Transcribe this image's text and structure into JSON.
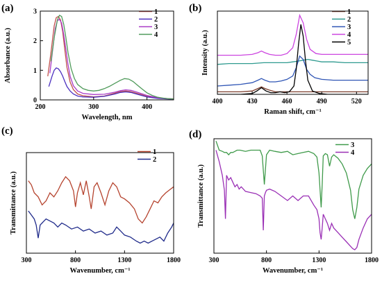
{
  "chart_data": [
    {
      "id": "a",
      "panel_label": "(a)",
      "type": "line",
      "xlabel": "Wavelength, nm",
      "ylabel": "Absorbance (a.u.)",
      "xlim": [
        200,
        450
      ],
      "ylim": [
        0,
        3
      ],
      "xticks": [
        200,
        300,
        400
      ],
      "yticks": [
        0,
        1,
        2,
        3
      ],
      "show_ytick_labels": true,
      "legend_position": "top-right",
      "series": [
        {
          "name": "1",
          "color": "#c0504d",
          "x": [
            214,
            220,
            226,
            230,
            234,
            238,
            242,
            246,
            250,
            256,
            262,
            270,
            280,
            300,
            320,
            340,
            350,
            360,
            370,
            380,
            400,
            420,
            440,
            450
          ],
          "y": [
            0.8,
            1.6,
            2.5,
            2.78,
            2.82,
            2.7,
            2.3,
            1.7,
            1.1,
            0.6,
            0.35,
            0.2,
            0.14,
            0.1,
            0.13,
            0.23,
            0.28,
            0.3,
            0.28,
            0.23,
            0.12,
            0.06,
            0.04,
            0.03
          ]
        },
        {
          "name": "2",
          "color": "#4b2fbf",
          "x": [
            216,
            222,
            226,
            230,
            234,
            238,
            242,
            246,
            250,
            256,
            262,
            270,
            280,
            300,
            320,
            340,
            350,
            360,
            370,
            380,
            400,
            420,
            440,
            450
          ],
          "y": [
            0.45,
            0.8,
            1.0,
            1.08,
            1.05,
            0.95,
            0.8,
            0.62,
            0.45,
            0.3,
            0.2,
            0.13,
            0.1,
            0.09,
            0.12,
            0.2,
            0.25,
            0.27,
            0.25,
            0.2,
            0.1,
            0.05,
            0.03,
            0.02
          ]
        },
        {
          "name": "3",
          "color": "#a93bc7",
          "x": [
            218,
            224,
            228,
            232,
            236,
            240,
            244,
            248,
            252,
            256,
            262,
            270,
            280,
            300,
            320,
            340,
            350,
            360,
            370,
            380,
            400,
            420,
            440,
            450
          ],
          "y": [
            0.9,
            1.8,
            2.4,
            2.68,
            2.72,
            2.6,
            2.2,
            1.7,
            1.2,
            0.8,
            0.48,
            0.3,
            0.22,
            0.18,
            0.19,
            0.26,
            0.31,
            0.34,
            0.32,
            0.27,
            0.15,
            0.07,
            0.04,
            0.03
          ]
        },
        {
          "name": "4",
          "color": "#4f9a5a",
          "x": [
            220,
            226,
            232,
            236,
            240,
            244,
            248,
            252,
            258,
            264,
            270,
            280,
            290,
            300,
            310,
            320,
            330,
            340,
            350,
            358,
            366,
            374,
            382,
            390,
            400,
            410,
            420,
            430,
            440,
            450
          ],
          "y": [
            1.3,
            2.1,
            2.7,
            2.86,
            2.82,
            2.55,
            2.1,
            1.6,
            1.05,
            0.72,
            0.52,
            0.38,
            0.32,
            0.3,
            0.32,
            0.38,
            0.46,
            0.56,
            0.66,
            0.72,
            0.7,
            0.62,
            0.5,
            0.38,
            0.24,
            0.15,
            0.09,
            0.06,
            0.04,
            0.03
          ]
        }
      ]
    },
    {
      "id": "b",
      "panel_label": "(b)",
      "type": "line",
      "xlabel": "Raman shift, cm⁻¹",
      "ylabel": "Intensity (a.u.)",
      "xlim": [
        400,
        530
      ],
      "ylim": [
        0,
        1
      ],
      "xticks": [
        400,
        430,
        460,
        490,
        520
      ],
      "show_ytick_labels": false,
      "legend_position": "top-right",
      "series": [
        {
          "name": "1",
          "color": "#7b3b2a",
          "x": [
            400,
            410,
            420,
            430,
            435,
            438,
            441,
            445,
            450,
            455,
            460,
            465,
            470,
            480,
            490,
            500,
            510,
            520,
            530
          ],
          "y": [
            0.03,
            0.03,
            0.03,
            0.04,
            0.07,
            0.09,
            0.07,
            0.05,
            0.03,
            0.03,
            0.03,
            0.03,
            0.03,
            0.03,
            0.03,
            0.03,
            0.03,
            0.03,
            0.03
          ]
        },
        {
          "name": "2",
          "color": "#2e9a8f",
          "x": [
            400,
            410,
            420,
            430,
            440,
            450,
            460,
            465,
            470,
            474,
            478,
            482,
            486,
            490,
            500,
            510,
            520,
            530
          ],
          "y": [
            0.36,
            0.37,
            0.37,
            0.37,
            0.38,
            0.38,
            0.38,
            0.39,
            0.4,
            0.41,
            0.42,
            0.41,
            0.4,
            0.39,
            0.39,
            0.38,
            0.38,
            0.38
          ]
        },
        {
          "name": "3",
          "color": "#2f55b5",
          "x": [
            400,
            410,
            420,
            430,
            435,
            438,
            441,
            445,
            450,
            455,
            460,
            465,
            468,
            471,
            474,
            477,
            480,
            484,
            490,
            500,
            510,
            520,
            530
          ],
          "y": [
            0.1,
            0.11,
            0.12,
            0.14,
            0.17,
            0.19,
            0.17,
            0.15,
            0.15,
            0.16,
            0.18,
            0.22,
            0.32,
            0.46,
            0.42,
            0.3,
            0.24,
            0.2,
            0.18,
            0.17,
            0.17,
            0.17,
            0.17
          ]
        },
        {
          "name": "4",
          "color": "#cc44e0",
          "x": [
            400,
            410,
            420,
            430,
            435,
            438,
            441,
            445,
            450,
            455,
            460,
            465,
            468,
            471,
            474,
            477,
            480,
            485,
            490,
            500,
            510,
            520,
            530
          ],
          "y": [
            0.47,
            0.47,
            0.47,
            0.48,
            0.5,
            0.52,
            0.5,
            0.48,
            0.47,
            0.47,
            0.49,
            0.56,
            0.72,
            0.95,
            0.86,
            0.66,
            0.54,
            0.49,
            0.48,
            0.48,
            0.48,
            0.48,
            0.48
          ]
        },
        {
          "name": "5",
          "color": "#000000",
          "x": [
            400,
            420,
            430,
            434,
            438,
            442,
            446,
            450,
            454,
            458,
            462,
            466,
            468,
            470,
            472,
            474,
            476,
            478,
            482,
            488,
            495,
            510,
            530
          ],
          "y": [
            0.0,
            0.0,
            0.01,
            0.04,
            0.08,
            0.04,
            0.02,
            0.02,
            0.03,
            0.02,
            0.03,
            0.1,
            0.3,
            0.6,
            0.84,
            0.7,
            0.4,
            0.17,
            0.04,
            0.01,
            0.0,
            0.0,
            0.0
          ]
        }
      ]
    },
    {
      "id": "c",
      "panel_label": "(c)",
      "type": "line",
      "xlabel": "Wavenumber, cm⁻¹",
      "ylabel": "Transmittance (a.u.)",
      "xlim": [
        300,
        1800
      ],
      "ylim": [
        0,
        1
      ],
      "xticks": [
        300,
        800,
        1300,
        1800
      ],
      "show_ytick_labels": false,
      "legend_position": "top-right",
      "series": [
        {
          "name": "1",
          "color": "#b5432e",
          "x": [
            320,
            350,
            380,
            420,
            460,
            500,
            540,
            580,
            620,
            660,
            700,
            740,
            780,
            800,
            820,
            850,
            880,
            910,
            940,
            960,
            990,
            1020,
            1060,
            1100,
            1140,
            1180,
            1220,
            1260,
            1300,
            1350,
            1400,
            1440,
            1480,
            1520,
            1560,
            1600,
            1640,
            1680,
            1720,
            1760,
            1800
          ],
          "y": [
            0.72,
            0.68,
            0.6,
            0.56,
            0.48,
            0.52,
            0.6,
            0.56,
            0.62,
            0.7,
            0.76,
            0.72,
            0.62,
            0.46,
            0.6,
            0.7,
            0.58,
            0.72,
            0.56,
            0.44,
            0.66,
            0.7,
            0.6,
            0.48,
            0.62,
            0.7,
            0.66,
            0.56,
            0.54,
            0.5,
            0.44,
            0.34,
            0.3,
            0.36,
            0.44,
            0.52,
            0.5,
            0.56,
            0.6,
            0.63,
            0.66
          ]
        },
        {
          "name": "2",
          "color": "#1f2a8a",
          "x": [
            320,
            350,
            380,
            400,
            420,
            440,
            460,
            480,
            500,
            540,
            580,
            620,
            660,
            700,
            760,
            820,
            880,
            940,
            1000,
            1060,
            1120,
            1180,
            1220,
            1260,
            1300,
            1360,
            1420,
            1460,
            1500,
            1540,
            1580,
            1620,
            1660,
            1700,
            1740,
            1780,
            1800
          ],
          "y": [
            0.42,
            0.38,
            0.34,
            0.28,
            0.15,
            0.28,
            0.3,
            0.32,
            0.34,
            0.32,
            0.3,
            0.26,
            0.3,
            0.28,
            0.24,
            0.26,
            0.22,
            0.24,
            0.2,
            0.22,
            0.18,
            0.2,
            0.26,
            0.22,
            0.18,
            0.16,
            0.12,
            0.1,
            0.12,
            0.1,
            0.12,
            0.14,
            0.16,
            0.12,
            0.2,
            0.26,
            0.3
          ]
        }
      ]
    },
    {
      "id": "d",
      "panel_label": "(d)",
      "type": "line",
      "xlabel": "Wavenumber, cm⁻¹",
      "ylabel": "Transmittance (a.u.)",
      "xlim": [
        300,
        1800
      ],
      "ylim": [
        0,
        1
      ],
      "xticks": [
        300,
        800,
        1300,
        1800
      ],
      "show_ytick_labels": false,
      "legend_position": "top-right",
      "series": [
        {
          "name": "3",
          "color": "#3f9a4a",
          "x": [
            320,
            350,
            380,
            400,
            420,
            440,
            460,
            480,
            500,
            520,
            550,
            600,
            650,
            700,
            740,
            760,
            780,
            800,
            830,
            880,
            940,
            1000,
            1050,
            1100,
            1150,
            1200,
            1250,
            1280,
            1300,
            1320,
            1330,
            1340,
            1360,
            1380,
            1400,
            1420,
            1440,
            1480,
            1520,
            1560,
            1600,
            1620,
            1640,
            1660,
            1680,
            1720,
            1760,
            1800
          ],
          "y": [
            0.98,
            0.9,
            0.89,
            0.88,
            0.88,
            0.86,
            0.88,
            0.88,
            0.89,
            0.9,
            0.9,
            0.89,
            0.9,
            0.9,
            0.9,
            0.85,
            0.6,
            0.86,
            0.9,
            0.89,
            0.88,
            0.89,
            0.86,
            0.87,
            0.88,
            0.89,
            0.87,
            0.84,
            0.7,
            0.4,
            0.6,
            0.85,
            0.87,
            0.86,
            0.76,
            0.84,
            0.86,
            0.83,
            0.78,
            0.7,
            0.55,
            0.38,
            0.3,
            0.4,
            0.56,
            0.68,
            0.74,
            0.78
          ]
        },
        {
          "name": "4",
          "color": "#9a2fb5",
          "x": [
            320,
            350,
            380,
            400,
            410,
            420,
            430,
            440,
            460,
            480,
            500,
            520,
            540,
            560,
            580,
            600,
            650,
            700,
            740,
            760,
            770,
            780,
            790,
            800,
            830,
            880,
            940,
            1000,
            1050,
            1100,
            1150,
            1200,
            1250,
            1280,
            1300,
            1310,
            1320,
            1330,
            1340,
            1360,
            1380,
            1400,
            1420,
            1440,
            1480,
            1520,
            1560,
            1600,
            1620,
            1640,
            1660,
            1680,
            1720,
            1760,
            1800
          ],
          "y": [
            0.9,
            0.8,
            0.68,
            0.55,
            0.3,
            0.68,
            0.66,
            0.64,
            0.66,
            0.62,
            0.58,
            0.6,
            0.56,
            0.58,
            0.56,
            0.54,
            0.53,
            0.52,
            0.5,
            0.48,
            0.2,
            0.5,
            0.53,
            0.55,
            0.56,
            0.54,
            0.5,
            0.46,
            0.5,
            0.46,
            0.5,
            0.5,
            0.42,
            0.38,
            0.3,
            0.18,
            0.12,
            0.22,
            0.34,
            0.3,
            0.26,
            0.2,
            0.26,
            0.22,
            0.18,
            0.14,
            0.1,
            0.06,
            0.04,
            0.03,
            0.05,
            0.12,
            0.22,
            0.3,
            0.34
          ]
        }
      ]
    }
  ]
}
